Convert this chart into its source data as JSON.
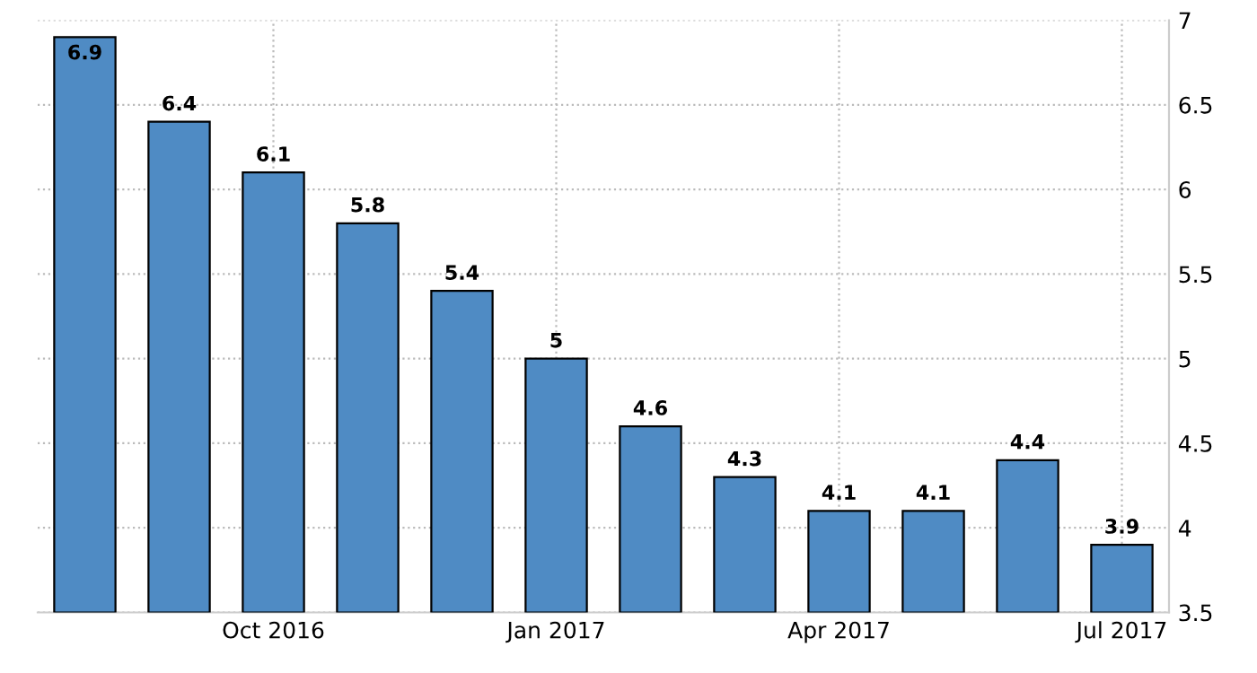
{
  "chart_data": {
    "type": "bar",
    "categories": [
      null,
      null,
      "Oct 2016",
      null,
      null,
      "Jan 2017",
      null,
      null,
      "Apr 2017",
      null,
      null,
      "Jul 2017"
    ],
    "values": [
      6.9,
      6.4,
      6.1,
      5.8,
      5.4,
      5,
      4.6,
      4.3,
      4.1,
      4.1,
      4.4,
      3.9
    ],
    "color": "#4f8bc4",
    "ylim": [
      3.5,
      7
    ],
    "yticks": [
      3.5,
      4,
      4.5,
      5,
      5.5,
      6,
      6.5,
      7
    ],
    "grid": true,
    "data_labels": true
  }
}
